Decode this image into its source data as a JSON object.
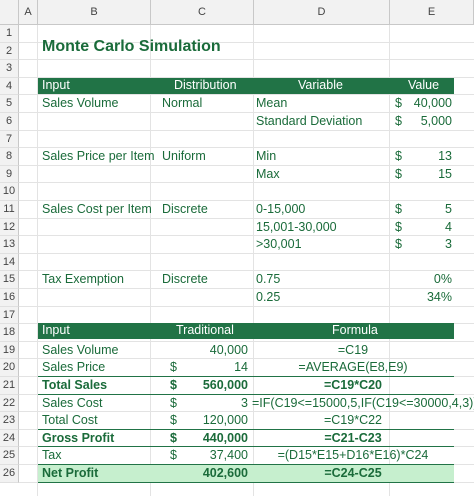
{
  "columns": [
    "A",
    "B",
    "C",
    "D",
    "E"
  ],
  "rows": [
    "1",
    "2",
    "3",
    "4",
    "5",
    "6",
    "7",
    "8",
    "9",
    "10",
    "11",
    "12",
    "13",
    "14",
    "15",
    "16",
    "17",
    "18",
    "19",
    "20",
    "21",
    "22",
    "23",
    "24",
    "25",
    "26"
  ],
  "title": "Monte Carlo Simulation",
  "table1": {
    "headers": [
      "Input",
      "Distribution",
      "Variable",
      "Value"
    ],
    "rows": [
      {
        "input": "Sales Volume",
        "dist": "Normal",
        "var": "Mean",
        "cur": "$",
        "val": "40,000"
      },
      {
        "input": "",
        "dist": "",
        "var": "Standard Deviation",
        "cur": "$",
        "val": "5,000"
      },
      {
        "input": "Sales Price per Item",
        "dist": "Uniform",
        "var": "Min",
        "cur": "$",
        "val": "13"
      },
      {
        "input": "",
        "dist": "",
        "var": "Max",
        "cur": "$",
        "val": "15"
      },
      {
        "input": "Sales Cost per Item",
        "dist": "Discrete",
        "var": "0-15,000",
        "cur": "$",
        "val": "5"
      },
      {
        "input": "",
        "dist": "",
        "var": "15,001-30,000",
        "cur": "$",
        "val": "4"
      },
      {
        "input": "",
        "dist": "",
        "var": ">30,001",
        "cur": "$",
        "val": "3"
      },
      {
        "input": "Tax Exemption",
        "dist": "Discrete",
        "var": "0.75",
        "cur": "",
        "val": "0%"
      },
      {
        "input": "",
        "dist": "",
        "var": "0.25",
        "cur": "",
        "val": "34%"
      }
    ]
  },
  "table2": {
    "headers": [
      "Input",
      "Traditional",
      "Formula"
    ],
    "rows": [
      {
        "input": "Sales Volume",
        "cur": "",
        "val": "40,000",
        "formula": "=C19"
      },
      {
        "input": "Sales Price",
        "cur": "$",
        "val": "14",
        "formula": "=AVERAGE(E8,E9)"
      },
      {
        "input": "Total Sales",
        "cur": "$",
        "val": "560,000",
        "formula": "=C19*C20"
      },
      {
        "input": "Sales Cost",
        "cur": "$",
        "val": "3",
        "formula": "=IF(C19<=15000,5,IF(C19<=30000,4,3))"
      },
      {
        "input": "Total Cost",
        "cur": "$",
        "val": "120,000",
        "formula": "=C19*C22"
      },
      {
        "input": "Gross Profit",
        "cur": "$",
        "val": "440,000",
        "formula": "=C21-C23"
      },
      {
        "input": "Tax",
        "cur": "$",
        "val": "37,400",
        "formula": "=(D15*E15+D16*E16)*C24"
      },
      {
        "input": "Net Profit",
        "cur": "",
        "val": "402,600",
        "formula": "=C24-C25"
      }
    ]
  },
  "colors": {
    "accent": "#217346",
    "text": "#1a6b3a",
    "highlight": "#c6efce"
  }
}
